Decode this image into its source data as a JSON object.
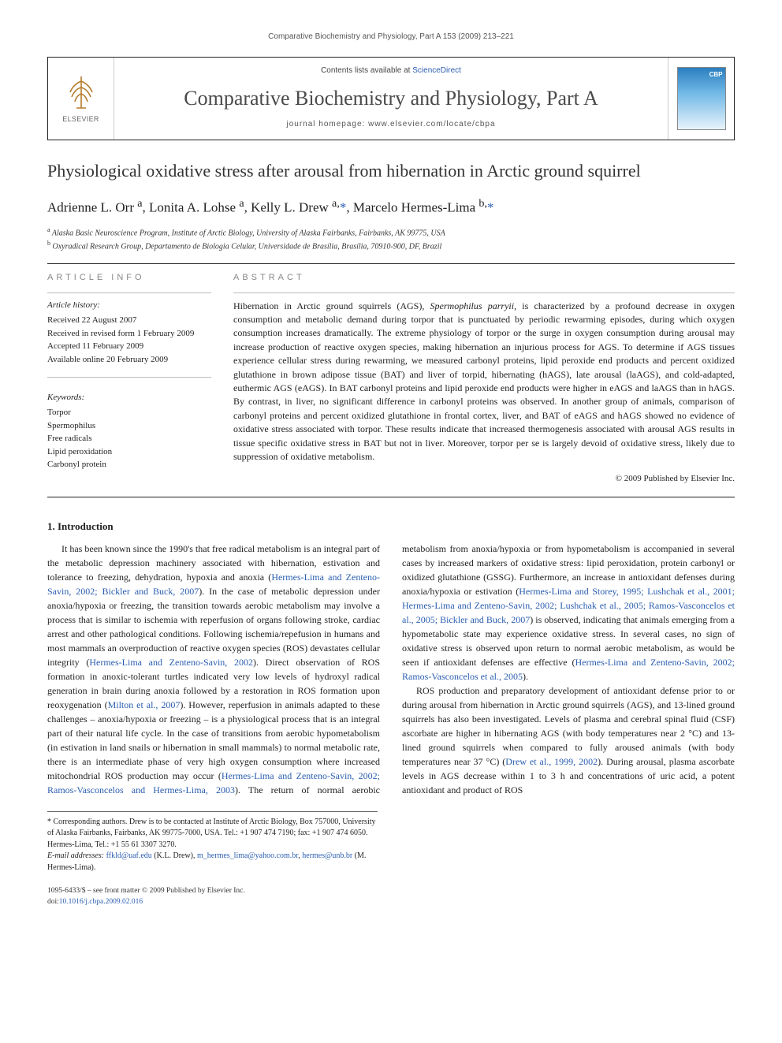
{
  "colors": {
    "link": "#2a5db0",
    "text": "#222",
    "muted": "#888",
    "rule": "#222"
  },
  "fonts": {
    "body": "Georgia, 'Times New Roman', serif",
    "sans": "Arial, sans-serif",
    "title_size": 22,
    "journal_size": 26,
    "body_size": 12
  },
  "running_head": "Comparative Biochemistry and Physiology, Part A 153 (2009) 213–221",
  "masthead": {
    "publisher": "ELSEVIER",
    "contents_prefix": "Contents lists available at ",
    "contents_link": "ScienceDirect",
    "journal": "Comparative Biochemistry and Physiology, Part A",
    "homepage_label": "journal homepage: ",
    "homepage_url": "www.elsevier.com/locate/cbpa",
    "cover_badge": "CBP"
  },
  "article": {
    "title": "Physiological oxidative stress after arousal from hibernation in Arctic ground squirrel",
    "authors_html": "Adrienne L. Orr <sup>a</sup>, Lonita A. Lohse <sup>a</sup>, Kelly L. Drew <sup>a,</sup><span class='link'>*</span>, Marcelo Hermes-Lima <sup>b,</sup><span class='link'>*</span>",
    "affiliations": [
      {
        "marker": "a",
        "text": "Alaska Basic Neuroscience Program, Institute of Arctic Biology, University of Alaska Fairbanks, Fairbanks, AK 99775, USA"
      },
      {
        "marker": "b",
        "text": "Oxyradical Research Group, Departamento de Biologia Celular, Universidade de Brasília, Brasília, 70910-900, DF, Brazil"
      }
    ]
  },
  "article_info": {
    "heading": "ARTICLE INFO",
    "history_label": "Article history:",
    "history": [
      "Received 22 August 2007",
      "Received in revised form 1 February 2009",
      "Accepted 11 February 2009",
      "Available online 20 February 2009"
    ],
    "keywords_label": "Keywords:",
    "keywords": [
      "Torpor",
      "Spermophilus",
      "Free radicals",
      "Lipid peroxidation",
      "Carbonyl protein"
    ]
  },
  "abstract": {
    "heading": "ABSTRACT",
    "body": "Hibernation in Arctic ground squirrels (AGS), Spermophilus parryii, is characterized by a profound decrease in oxygen consumption and metabolic demand during torpor that is punctuated by periodic rewarming episodes, during which oxygen consumption increases dramatically. The extreme physiology of torpor or the surge in oxygen consumption during arousal may increase production of reactive oxygen species, making hibernation an injurious process for AGS. To determine if AGS tissues experience cellular stress during rewarming, we measured carbonyl proteins, lipid peroxide end products and percent oxidized glutathione in brown adipose tissue (BAT) and liver of torpid, hibernating (hAGS), late arousal (laAGS), and cold-adapted, euthermic AGS (eAGS). In BAT carbonyl proteins and lipid peroxide end products were higher in eAGS and laAGS than in hAGS. By contrast, in liver, no significant difference in carbonyl proteins was observed. In another group of animals, comparison of carbonyl proteins and percent oxidized glutathione in frontal cortex, liver, and BAT of eAGS and hAGS showed no evidence of oxidative stress associated with torpor. These results indicate that increased thermogenesis associated with arousal AGS results in tissue specific oxidative stress in BAT but not in liver. Moreover, torpor per se is largely devoid of oxidative stress, likely due to suppression of oxidative metabolism.",
    "copyright": "© 2009 Published by Elsevier Inc."
  },
  "intro": {
    "heading": "1. Introduction",
    "p1_pre": "It has been known since the 1990's that free radical metabolism is an integral part of the metabolic depression machinery associated with hibernation, estivation and tolerance to freezing, dehydration, hypoxia and anoxia (",
    "p1_link1": "Hermes-Lima and Zenteno-Savin, 2002; Bickler and Buck, 2007",
    "p1_mid1": "). In the case of metabolic depression under anoxia/hypoxia or freezing, the transition towards aerobic metabolism may involve a process that is similar to ischemia with reperfusion of organs following stroke, cardiac arrest and other pathological conditions. Following ischemia/repefusion in humans and most mammals an overproduction of reactive oxygen species (ROS) devastates cellular integrity (",
    "p1_link2": "Hermes-Lima and Zenteno-Savin, 2002",
    "p1_mid2": "). Direct observation of ROS formation in anoxic-tolerant turtles indicated very low levels of hydroxyl radical generation in brain during anoxia followed by a restoration in ROS formation upon reoxygenation (",
    "p1_link3": "Milton et al., 2007",
    "p1_mid3": "). However, reperfusion in animals adapted to these challenges – anoxia/hypoxia or freezing – is a physiological process that is an integral part of their natural life cycle. In the case of transitions from aerobic hypometabolism (in estivation in land snails or hibernation in small mammals) to normal metabolic rate, there is an intermediate phase of very high oxygen consumption where increased mitochondrial ROS production may occur (",
    "p1_link4": "Hermes-Lima and Zenteno-Savin, 2002; Ramos-Vasconcelos and Hermes-Lima, 2003",
    "p1_mid4": "). The return of normal aerobic metabolism from anoxia/hypoxia or from hypometabolism is accompanied in several cases by increased markers of oxidative stress: lipid peroxidation, protein carbonyl or oxidized glutathione (GSSG). Furthermore, an increase in antioxidant defenses during anoxia/hypoxia or estivation (",
    "p1_link5": "Hermes-Lima and Storey, 1995; Lushchak et al., 2001; Hermes-Lima and Zenteno-Savin, 2002; Lushchak et al., 2005; Ramos-Vasconcelos et al., 2005; Bickler and Buck, 2007",
    "p1_mid5": ") is observed, indicating that animals emerging from a hypometabolic state may experience oxidative stress. In several cases, no sign of oxidative stress is observed upon return to normal aerobic metabolism, as would be seen if antioxidant defenses are effective (",
    "p1_link6": "Hermes-Lima and Zenteno-Savin, 2002; Ramos-Vasconcelos et al., 2005",
    "p1_post": ").",
    "p2_pre": "ROS production and preparatory development of antioxidant defense prior to or during arousal from hibernation in Arctic ground squirrels (AGS), and 13-lined ground squirrels has also been investigated. Levels of plasma and cerebral spinal fluid (CSF) ascorbate are higher in hibernating AGS (with body temperatures near 2 °C) and 13-lined ground squirrels when compared to fully aroused animals (with body temperatures near 37 °C) (",
    "p2_link1": "Drew et al., 1999, 2002",
    "p2_post": "). During arousal, plasma ascorbate levels in AGS decrease within 1 to 3 h and concentrations of uric acid, a potent antioxidant and product of ROS"
  },
  "footnotes": {
    "corr": "* Corresponding authors. Drew is to be contacted at Institute of Arctic Biology, Box 757000, University of Alaska Fairbanks, Fairbanks, AK 99775-7000, USA. Tel.: +1 907 474 7190; fax: +1 907 474 6050. Hermes-Lima, Tel.: +1 55 61 3307 3270.",
    "email_label": "E-mail addresses:",
    "email1": "ffkld@uaf.edu",
    "email1_who": " (K.L. Drew), ",
    "email2": "m_hermes_lima@yahoo.com.br",
    "email2_sep": ", ",
    "email3": "hermes@unb.br",
    "email3_who": " (M. Hermes-Lima)."
  },
  "bibfooter": {
    "line1": "1095-6433/$ – see front matter © 2009 Published by Elsevier Inc.",
    "doi_label": "doi:",
    "doi": "10.1016/j.cbpa.2009.02.016"
  }
}
